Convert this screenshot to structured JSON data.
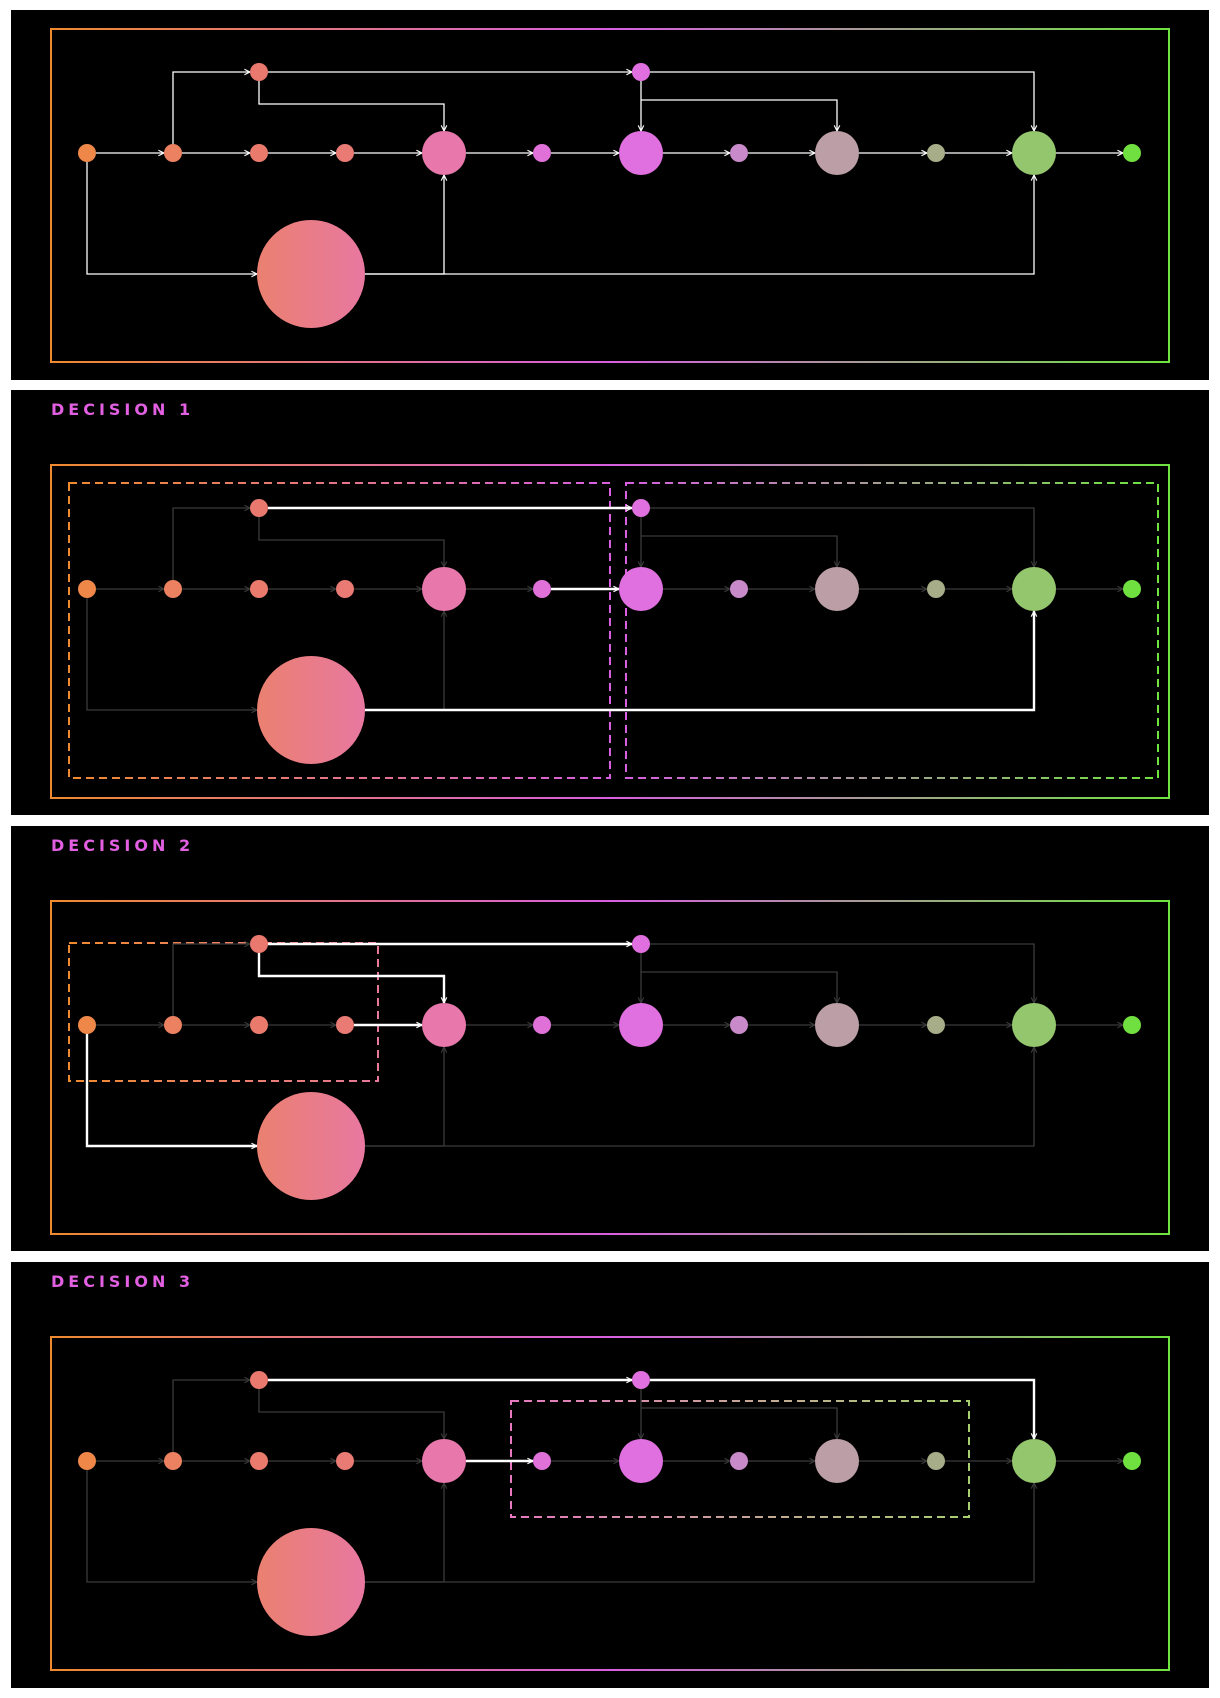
{
  "panels": [
    {
      "id": "overview",
      "title": ""
    },
    {
      "id": "decision-1",
      "title": "DECISION 1"
    },
    {
      "id": "decision-2",
      "title": "DECISION 2"
    },
    {
      "id": "decision-3",
      "title": "DECISION 3"
    }
  ],
  "colors": {
    "background": "#000000",
    "title": "#e15fe0",
    "edge_active": "#ffffff",
    "edge_dim": "#3a3a3a",
    "frame_start": "#f08a2e",
    "frame_mid": "#d75fe0",
    "frame_end": "#6fe33f"
  },
  "nodes": [
    {
      "id": "n0",
      "color": "#ee8748"
    },
    {
      "id": "n1",
      "color": "#eb8160"
    },
    {
      "id": "n2",
      "color": "#e97a6c"
    },
    {
      "id": "n3",
      "color": "#e97a74"
    },
    {
      "id": "n4",
      "color": "#e878ac"
    },
    {
      "id": "n5",
      "color": "#df71d8"
    },
    {
      "id": "n6",
      "color": "#e070e0"
    },
    {
      "id": "n7",
      "color": "#c98ac9"
    },
    {
      "id": "n8",
      "color": "#bc9fa6"
    },
    {
      "id": "n9",
      "color": "#a7ad88"
    },
    {
      "id": "n10",
      "color": "#94c66e"
    },
    {
      "id": "n11",
      "color": "#6fe040"
    },
    {
      "id": "t1",
      "color": "#e9786e"
    },
    {
      "id": "t2",
      "color": "#e070df"
    },
    {
      "id": "big",
      "color": "#e87c90"
    }
  ],
  "edges": [
    {
      "from": "n0",
      "to": "n1"
    },
    {
      "from": "n1",
      "to": "n2"
    },
    {
      "from": "n2",
      "to": "n3"
    },
    {
      "from": "n3",
      "to": "n4"
    },
    {
      "from": "n4",
      "to": "n5"
    },
    {
      "from": "n5",
      "to": "n6"
    },
    {
      "from": "n6",
      "to": "n7"
    },
    {
      "from": "n7",
      "to": "n8"
    },
    {
      "from": "n8",
      "to": "n9"
    },
    {
      "from": "n9",
      "to": "n10"
    },
    {
      "from": "n10",
      "to": "n11"
    },
    {
      "from": "n1",
      "to": "t1"
    },
    {
      "from": "t1",
      "to": "t2"
    },
    {
      "from": "t1",
      "to": "n4"
    },
    {
      "from": "t2",
      "to": "n6"
    },
    {
      "from": "t2",
      "to": "n8"
    },
    {
      "from": "t2",
      "to": "n10"
    },
    {
      "from": "n0",
      "to": "big"
    },
    {
      "from": "big",
      "to": "n4"
    },
    {
      "from": "big",
      "to": "n10"
    }
  ],
  "views": [
    {
      "highlight": "all",
      "regions": []
    },
    {
      "highlight": [
        "t1-t2",
        "n5-n6",
        "big-n10"
      ],
      "regions": [
        "left-half",
        "right-half"
      ]
    },
    {
      "highlight": [
        "t1-t2",
        "t1-n4",
        "n3-n4",
        "n0-big"
      ],
      "regions": [
        "top-left"
      ]
    },
    {
      "highlight": [
        "t1-t2",
        "n4-n5",
        "t2-n10"
      ],
      "regions": [
        "middle"
      ]
    }
  ]
}
